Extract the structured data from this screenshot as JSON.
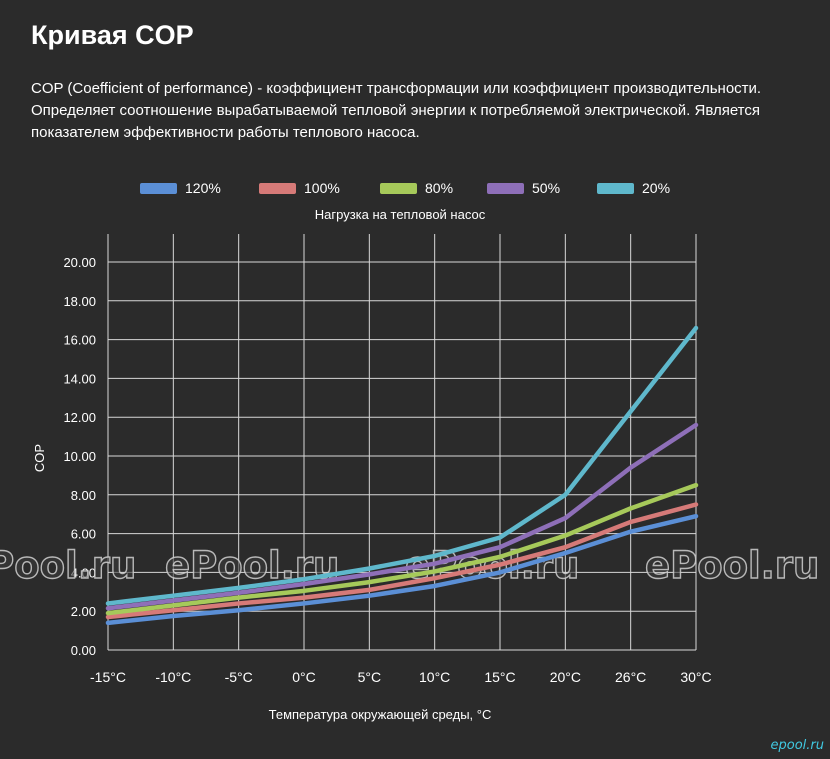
{
  "header": {
    "title": "Кривая COP",
    "description": "COP (Coefficient of performance) - коэффициент трансформации или коэффициент производительности. Определяет соотношение вырабатываемой тепловой энергии к потребляемой электрической. Является показателем эффективности работы теплового насоса."
  },
  "watermark": {
    "text": "ePool.ru",
    "corner_text": "epool.ru"
  },
  "chart_data": {
    "type": "line",
    "title": "Нагрузка на тепловой насос",
    "xlabel": "Температура окружающей среды, °C",
    "ylabel": "COP",
    "categories": [
      "-15°C",
      "-10°C",
      "-5°C",
      "0°C",
      "5°C",
      "10°C",
      "15°C",
      "20°C",
      "26°C",
      "30°C"
    ],
    "ylim": [
      0,
      20
    ],
    "y_ticks": [
      "0.00",
      "2.00",
      "4.00",
      "6.00",
      "8.00",
      "10.00",
      "12.00",
      "14.00",
      "16.00",
      "18.00",
      "20.00"
    ],
    "grid": true,
    "legend_position": "top",
    "series": [
      {
        "name": "120%",
        "color": "#5b8fd6",
        "values": [
          1.4,
          1.75,
          2.05,
          2.4,
          2.8,
          3.3,
          4.0,
          5.0,
          6.1,
          6.9
        ]
      },
      {
        "name": "100%",
        "color": "#d67a78",
        "values": [
          1.7,
          2.05,
          2.4,
          2.7,
          3.1,
          3.7,
          4.4,
          5.3,
          6.6,
          7.5
        ]
      },
      {
        "name": "80%",
        "color": "#a6c95a",
        "values": [
          1.9,
          2.3,
          2.7,
          3.05,
          3.5,
          4.05,
          4.8,
          5.9,
          7.3,
          8.5
        ]
      },
      {
        "name": "50%",
        "color": "#8e6fb8",
        "values": [
          2.15,
          2.55,
          2.95,
          3.4,
          3.9,
          4.45,
          5.3,
          6.8,
          9.4,
          11.6
        ]
      },
      {
        "name": "20%",
        "color": "#5fb8cc",
        "values": [
          2.4,
          2.8,
          3.2,
          3.65,
          4.2,
          4.85,
          5.8,
          8.0,
          12.3,
          16.6
        ]
      }
    ]
  }
}
